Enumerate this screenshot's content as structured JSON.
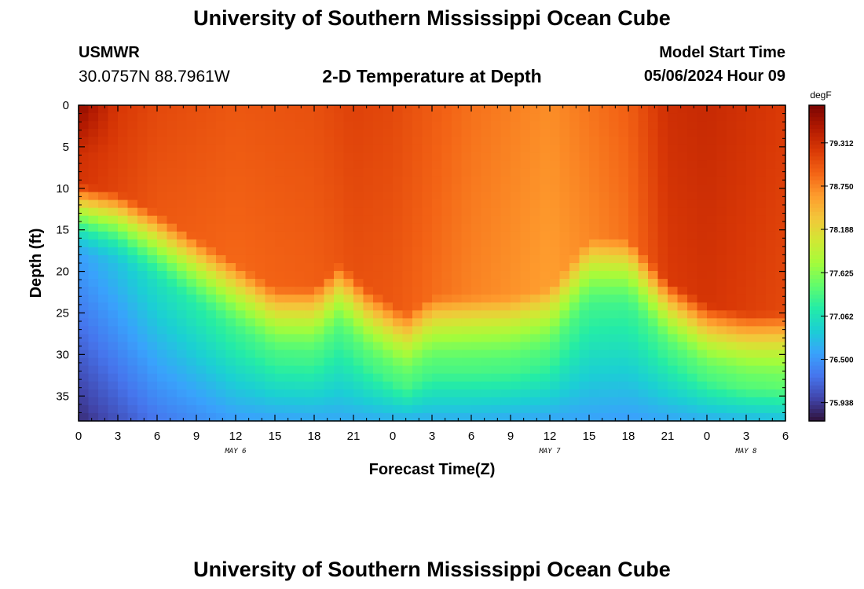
{
  "header": {
    "title": "University of Southern Mississippi Ocean Cube",
    "station": "USMWR",
    "coords": "30.0757N  88.7961W",
    "plot_title": "2-D Temperature at Depth",
    "model_start_label": "Model Start Time",
    "model_start_value": "05/06/2024 Hour 09"
  },
  "footer": {
    "title": "University of Southern Mississippi Ocean Cube"
  },
  "date_labels": [
    {
      "text": "MAY 6",
      "hour_index": 4
    },
    {
      "text": "MAY 7",
      "hour_index": 12
    },
    {
      "text": "MAY 8",
      "hour_index": 17
    }
  ],
  "colors": {
    "stops": [
      "#30123b",
      "#4145ab",
      "#4675ed",
      "#39a2fc",
      "#1bcfd4",
      "#24eca6",
      "#61fc6c",
      "#a4fc3b",
      "#d1e834",
      "#f3c63a",
      "#fe9b2d",
      "#f36315",
      "#d93806",
      "#b11901",
      "#7a0402"
    ]
  },
  "chart_data": {
    "type": "heatmap",
    "title": "2-D Temperature at Depth",
    "xlabel": "Forecast Time(Z)",
    "ylabel": "Depth (ft)",
    "x_ticks": [
      "0",
      "3",
      "6",
      "9",
      "12",
      "15",
      "18",
      "21",
      "0",
      "3",
      "6",
      "9",
      "12",
      "15",
      "18",
      "21",
      "0",
      "3",
      "6"
    ],
    "x_range_hours": [
      0,
      54
    ],
    "y_ticks": [
      0,
      5,
      10,
      15,
      20,
      25,
      30,
      35
    ],
    "ylim": [
      0,
      38
    ],
    "colorbar": {
      "unit": "degF",
      "ticks": [
        "79.312",
        "78.750",
        "78.188",
        "77.625",
        "77.062",
        "76.500",
        "75.938"
      ],
      "range": [
        75.7,
        79.8
      ]
    },
    "field": {
      "surface_temp": {
        "hours": [
          0,
          6,
          12,
          18,
          21,
          24,
          30,
          36,
          42,
          45,
          48,
          54
        ],
        "values": [
          79.35,
          79.1,
          79.0,
          79.05,
          79.15,
          79.1,
          78.85,
          78.7,
          78.95,
          79.3,
          79.35,
          79.2
        ]
      },
      "mixed_layer_depth_ft": {
        "hours": [
          0,
          3,
          6,
          9,
          12,
          15,
          18,
          20,
          22,
          24,
          25,
          27,
          30,
          33,
          36,
          39,
          42,
          45,
          48,
          51,
          54
        ],
        "values": [
          9.5,
          10.5,
          13,
          16,
          19,
          22,
          22,
          19,
          22,
          24,
          25,
          23,
          23,
          23,
          22,
          16,
          16,
          21,
          24,
          25,
          25
        ]
      },
      "deep_temp_38ft": {
        "hours": [
          0,
          6,
          12,
          18,
          24,
          30,
          36,
          42,
          48,
          54
        ],
        "values": [
          75.85,
          76.3,
          76.55,
          76.6,
          76.65,
          76.65,
          76.6,
          76.55,
          76.65,
          76.75
        ]
      }
    }
  }
}
